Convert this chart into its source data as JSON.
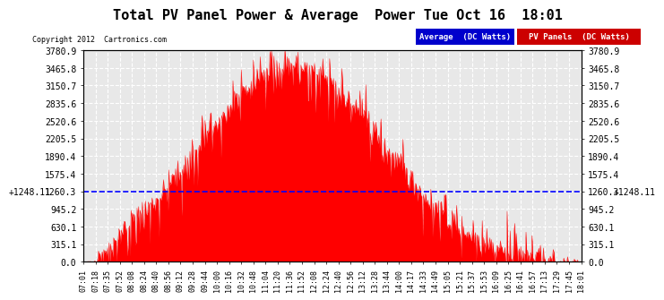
{
  "title": "Total PV Panel Power & Average  Power Tue Oct 16  18:01",
  "copyright_text": "Copyright 2012  Cartronics.com",
  "legend_label_avg": "Average  (DC Watts)",
  "legend_label_pv": "PV Panels  (DC Watts)",
  "legend_color_avg": "#0000cc",
  "legend_color_pv": "#cc0000",
  "ymax": 3780.9,
  "ymin": 0.0,
  "yticks": [
    0.0,
    315.1,
    630.1,
    945.2,
    1260.3,
    1575.4,
    1890.4,
    2205.5,
    2520.6,
    2835.6,
    3150.7,
    3465.8,
    3780.9
  ],
  "average_line": 1248.11,
  "average_label": "+1248.11",
  "background_color": "#ffffff",
  "plot_bg_color": "#e8e8e8",
  "grid_color": "#ffffff",
  "pv_color": "#ff0000",
  "avg_color": "#0000ff",
  "xtick_labels": [
    "07:01",
    "07:18",
    "07:35",
    "07:52",
    "08:08",
    "08:24",
    "08:40",
    "08:56",
    "09:12",
    "09:28",
    "09:44",
    "10:00",
    "10:16",
    "10:32",
    "10:48",
    "11:04",
    "11:20",
    "11:36",
    "11:52",
    "12:08",
    "12:24",
    "12:40",
    "12:56",
    "13:12",
    "13:28",
    "13:44",
    "14:00",
    "14:17",
    "14:33",
    "14:49",
    "15:05",
    "15:21",
    "15:37",
    "15:53",
    "16:09",
    "16:25",
    "16:41",
    "16:57",
    "17:13",
    "17:29",
    "17:45",
    "18:01"
  ]
}
